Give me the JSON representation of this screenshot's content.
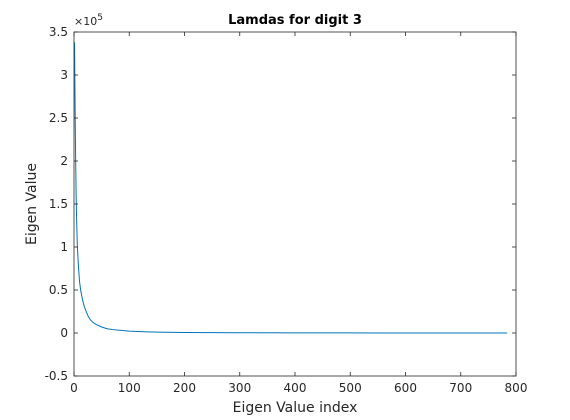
{
  "chart_data": {
    "type": "line",
    "title": "Lamdas for digit 3",
    "xlabel": "Eigen Value index",
    "ylabel": "Eigen Value",
    "exponent_label": "×10",
    "exponent_power": "5",
    "y_scale": 100000,
    "xlim": [
      0,
      800
    ],
    "ylim": [
      -0.5,
      3.5
    ],
    "xticks": [
      0,
      100,
      200,
      300,
      400,
      500,
      600,
      700,
      800
    ],
    "xtick_labels": [
      "0",
      "100",
      "200",
      "300",
      "400",
      "500",
      "600",
      "700",
      "800"
    ],
    "yticks": [
      -0.5,
      0,
      0.5,
      1,
      1.5,
      2,
      2.5,
      3,
      3.5
    ],
    "ytick_labels": [
      "-0.5",
      "0",
      "0.5",
      "1",
      "1.5",
      "2",
      "2.5",
      "3",
      "3.5"
    ],
    "grid": false,
    "legend": "none",
    "series": [
      {
        "color": "#0072BD",
        "x": [
          1,
          2,
          3,
          4,
          5,
          6,
          8,
          10,
          12,
          15,
          18,
          22,
          26,
          30,
          35,
          40,
          50,
          60,
          70,
          80,
          100,
          120,
          150,
          200,
          250,
          300,
          400,
          500,
          600,
          700,
          784
        ],
        "y": [
          3.38,
          2.6,
          2.0,
          1.55,
          1.25,
          1.02,
          0.78,
          0.6,
          0.5,
          0.4,
          0.32,
          0.25,
          0.19,
          0.15,
          0.12,
          0.1,
          0.07,
          0.05,
          0.04,
          0.033,
          0.022,
          0.016,
          0.01,
          0.006,
          0.004,
          0.003,
          0.0015,
          0.0008,
          0.0004,
          0.0002,
          0.0
        ]
      }
    ]
  }
}
